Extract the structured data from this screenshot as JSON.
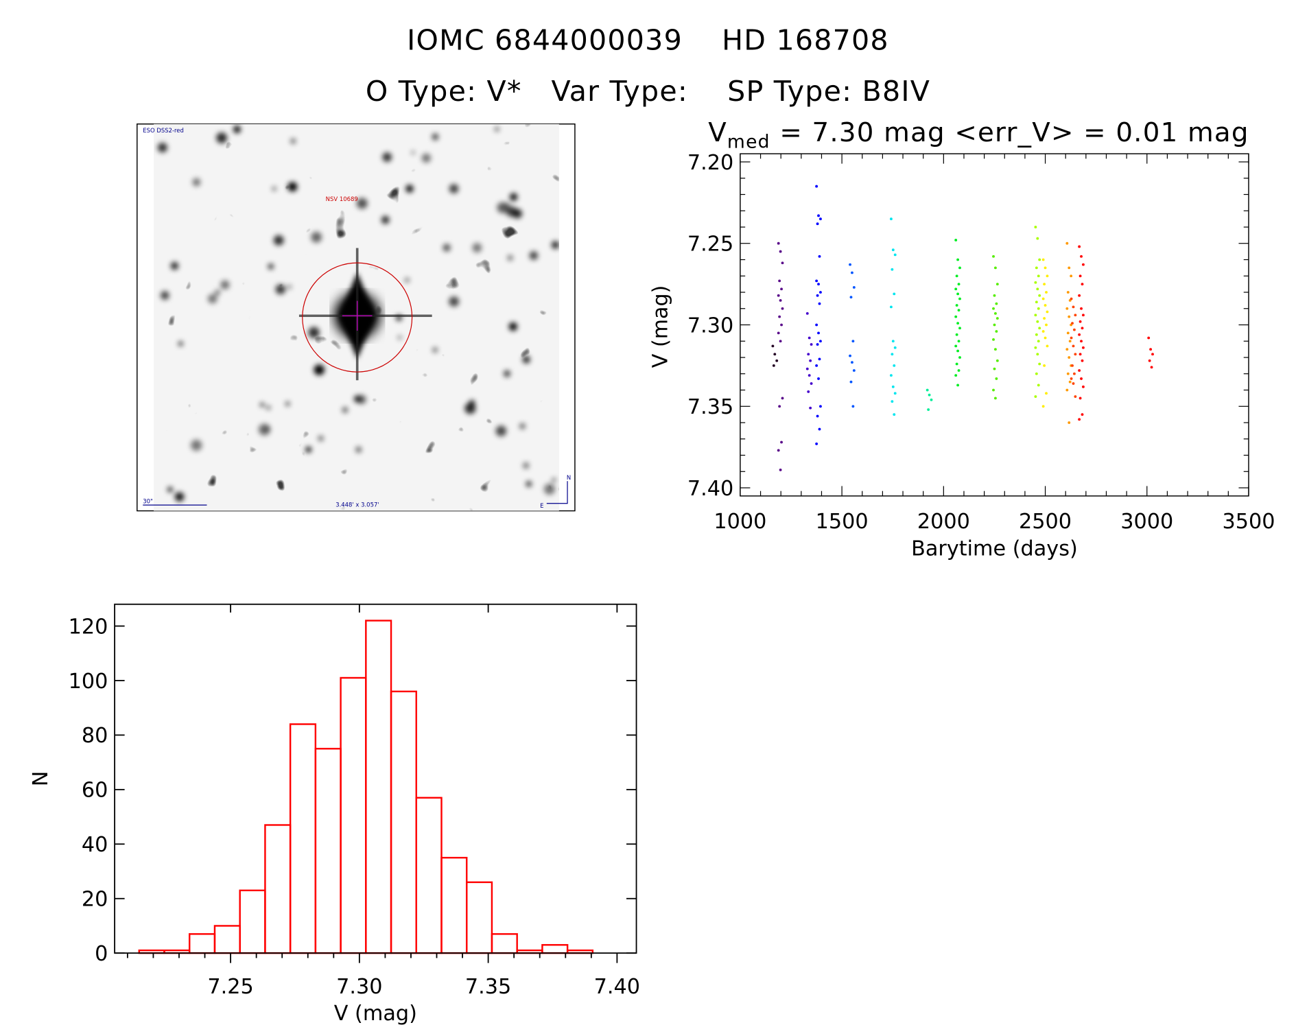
{
  "header": {
    "title_line1": "IOMC 6844000039    HD 168708",
    "title_line2": "O Type: V*   Var Type:    SP Type: B8IV"
  },
  "image_panel": {
    "survey_label": "ESO DSS2-red",
    "object_label": "NSV 10689",
    "scale_label": "30\"",
    "field_label": "3.448' x 3.057'",
    "north_label": "N",
    "east_label": "E",
    "colors": {
      "label": "#00008b",
      "circle": "#cc0000",
      "crosshair": "#cc00cc"
    }
  },
  "chart_data": [
    {
      "type": "scatter",
      "title_parts": {
        "v": "V",
        "sub": "med",
        "rest": " = 7.30 mag <err_V> = 0.01 mag"
      },
      "xlabel": "Barytime (days)",
      "ylabel": "V (mag)",
      "xlim": [
        1000,
        3500
      ],
      "ylim": [
        7.195,
        7.405
      ],
      "y_inverted": true,
      "xticks": [
        "1000",
        "1500",
        "2000",
        "2500",
        "3000",
        "3500"
      ],
      "yticks": [
        "7.20",
        "7.25",
        "7.30",
        "7.35",
        "7.40"
      ],
      "grid": false,
      "groups": [
        {
          "x": 1170,
          "color": "#220022",
          "y": [
            7.313,
            7.318,
            7.322,
            7.325
          ]
        },
        {
          "x": 1198,
          "color": "#5a0a8a",
          "y": [
            7.25,
            7.255,
            7.262,
            7.273,
            7.278,
            7.282,
            7.285,
            7.29,
            7.295,
            7.3,
            7.305,
            7.31,
            7.345,
            7.35,
            7.372,
            7.377,
            7.389
          ]
        },
        {
          "x": 1340,
          "color": "#4400cc",
          "y": [
            7.293,
            7.308,
            7.312,
            7.318,
            7.322,
            7.327,
            7.331,
            7.336,
            7.341,
            7.351
          ]
        },
        {
          "x": 1385,
          "color": "#0000ff",
          "y": [
            7.215,
            7.233,
            7.235,
            7.238,
            7.258,
            7.273,
            7.275,
            7.28,
            7.282,
            7.287,
            7.3,
            7.305,
            7.31,
            7.312,
            7.321,
            7.325,
            7.333,
            7.35,
            7.356,
            7.364,
            7.373
          ]
        },
        {
          "x": 1550,
          "color": "#0055ff",
          "y": [
            7.263,
            7.268,
            7.277,
            7.283,
            7.31,
            7.319,
            7.323,
            7.328,
            7.335,
            7.35
          ]
        },
        {
          "x": 1752,
          "color": "#00e5ee",
          "y": [
            7.235,
            7.254,
            7.257,
            7.266,
            7.281,
            7.289,
            7.31,
            7.314,
            7.318,
            7.325,
            7.331,
            7.338,
            7.342,
            7.347,
            7.355
          ]
        },
        {
          "x": 1930,
          "color": "#00ee99",
          "y": [
            7.34,
            7.343,
            7.346,
            7.352
          ]
        },
        {
          "x": 2070,
          "color": "#00ee22",
          "y": [
            7.248,
            7.26,
            7.265,
            7.27,
            7.275,
            7.278,
            7.281,
            7.284,
            7.288,
            7.291,
            7.295,
            7.299,
            7.302,
            7.306,
            7.31,
            7.313,
            7.316,
            7.32,
            7.324,
            7.328,
            7.331,
            7.337
          ]
        },
        {
          "x": 2255,
          "color": "#55ee00",
          "y": [
            7.258,
            7.265,
            7.275,
            7.282,
            7.287,
            7.29,
            7.293,
            7.296,
            7.3,
            7.304,
            7.309,
            7.315,
            7.322,
            7.327,
            7.333,
            7.34,
            7.345
          ]
        },
        {
          "x": 2462,
          "color": "#aaff00",
          "y": [
            7.24,
            7.247,
            7.26,
            7.265,
            7.27,
            7.274,
            7.278,
            7.282,
            7.286,
            7.29,
            7.294,
            7.298,
            7.302,
            7.306,
            7.31,
            7.314,
            7.318,
            7.324,
            7.33,
            7.337,
            7.344
          ]
        },
        {
          "x": 2500,
          "color": "#ffee00",
          "y": [
            7.26,
            7.265,
            7.27,
            7.275,
            7.28,
            7.284,
            7.288,
            7.292,
            7.296,
            7.3,
            7.304,
            7.308,
            7.313,
            7.325,
            7.342,
            7.35
          ]
        },
        {
          "x": 2617,
          "color": "#ff9900",
          "y": [
            7.25,
            7.265,
            7.27,
            7.28,
            7.285,
            7.29,
            7.295,
            7.3,
            7.305,
            7.31,
            7.315,
            7.32,
            7.325,
            7.33,
            7.335,
            7.34,
            7.36
          ]
        },
        {
          "x": 2638,
          "color": "#ff4400",
          "y": [
            7.284,
            7.289,
            7.294,
            7.299,
            7.303,
            7.308,
            7.313,
            7.318,
            7.325,
            7.33,
            7.333,
            7.336,
            7.344
          ]
        },
        {
          "x": 2677,
          "color": "#ff0000",
          "y": [
            7.252,
            7.258,
            7.263,
            7.27,
            7.275,
            7.282,
            7.29,
            7.294,
            7.298,
            7.302,
            7.306,
            7.31,
            7.314,
            7.318,
            7.322,
            7.328,
            7.333,
            7.338,
            7.345,
            7.355,
            7.358
          ]
        },
        {
          "x": 3018,
          "color": "#ff0000",
          "y": [
            7.308,
            7.315,
            7.318,
            7.322,
            7.326
          ]
        }
      ]
    },
    {
      "type": "bar",
      "subtype": "histogram",
      "xlabel": "V (mag)",
      "ylabel": "N",
      "xlim": [
        7.205,
        7.4075
      ],
      "ylim": [
        0,
        128
      ],
      "xticks": [
        "7.25",
        "7.30",
        "7.35",
        "7.40"
      ],
      "yticks": [
        "0",
        "20",
        "40",
        "60",
        "80",
        "100",
        "120"
      ],
      "bin_start": 7.2145,
      "bin_width": 0.00978,
      "values": [
        1,
        1,
        7,
        10,
        23,
        47,
        84,
        75,
        101,
        122,
        96,
        57,
        35,
        26,
        7,
        1,
        3,
        1
      ],
      "color": "#ff0000",
      "grid": false
    }
  ]
}
